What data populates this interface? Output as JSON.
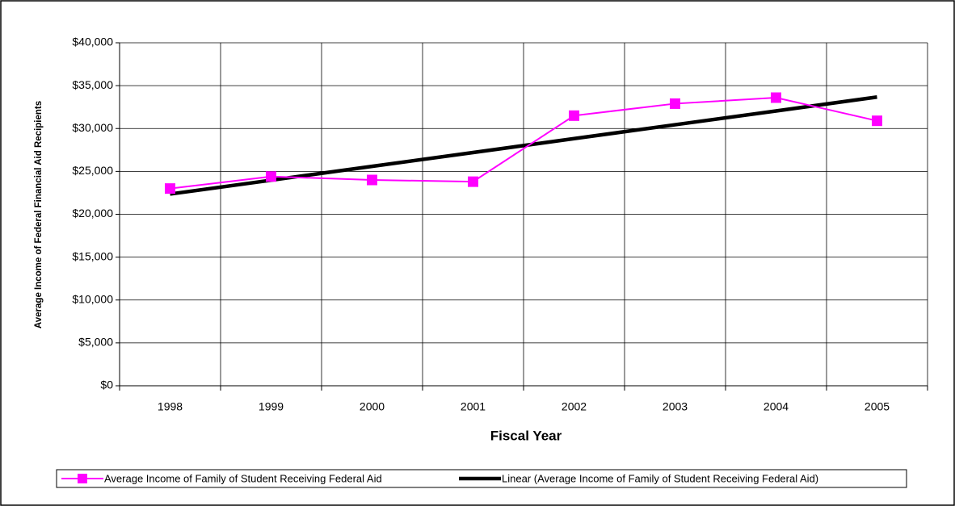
{
  "chart_data": {
    "type": "line",
    "y_label": "Average Income of Federal Financial Aid Recipients",
    "x_label": "Fiscal Year",
    "categories": [
      "1998",
      "1999",
      "2000",
      "2001",
      "2002",
      "2003",
      "2004",
      "2005"
    ],
    "series": [
      {
        "name": "Average Income of Family of Student Receiving Federal Aid",
        "color": "#ff00ff",
        "marker": "square",
        "values": [
          23000,
          24400,
          24000,
          23800,
          31500,
          32900,
          33600,
          30900
        ]
      },
      {
        "name": "Linear (Average Income of Family of Student Receiving Federal Aid)",
        "color": "#000000",
        "values": [
          22360,
          23970,
          25590,
          27200,
          28820,
          30440,
          32050,
          33670
        ]
      }
    ],
    "ylim": [
      0,
      40000
    ],
    "yticks": [
      {
        "value": 0,
        "label": "$0"
      },
      {
        "value": 5000,
        "label": "$5,000"
      },
      {
        "value": 10000,
        "label": "$10,000"
      },
      {
        "value": 15000,
        "label": "$15,000"
      },
      {
        "value": 20000,
        "label": "$20,000"
      },
      {
        "value": 25000,
        "label": "$25,000"
      },
      {
        "value": 30000,
        "label": "$30,000"
      },
      {
        "value": 35000,
        "label": "$35,000"
      },
      {
        "value": 40000,
        "label": "$40,000"
      }
    ],
    "grid": true,
    "legend": "bottom"
  }
}
